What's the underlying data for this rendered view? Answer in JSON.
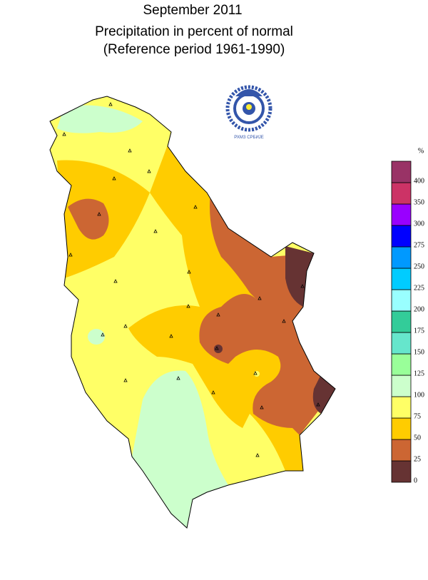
{
  "header": {
    "title": "September  2011",
    "subtitle": "Precipitation in percent of normal",
    "reference": "(Reference period 1961-1990)"
  },
  "legend": {
    "unit": "%",
    "ticks": [
      0,
      25,
      50,
      75,
      100,
      125,
      150,
      175,
      200,
      225,
      250,
      275,
      300,
      350,
      400
    ],
    "colors": [
      "#663333",
      "#cc6633",
      "#ffcc00",
      "#ffff66",
      "#ccffcc",
      "#99ff99",
      "#66e6cc",
      "#33cc99",
      "#99ffff",
      "#00ccff",
      "#0099ff",
      "#0000ff",
      "#9900ff",
      "#cc3366",
      "#993366"
    ]
  }
}
